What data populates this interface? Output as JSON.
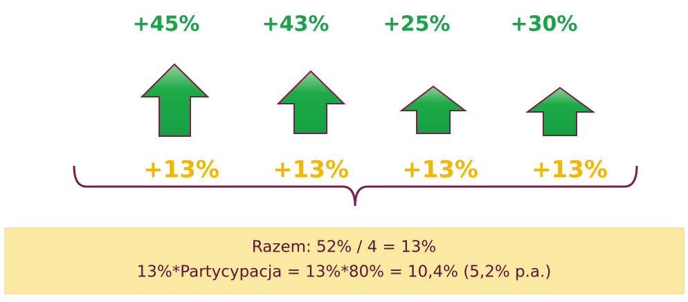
{
  "items": [
    {
      "top": "+45%",
      "bottom": "+13%"
    },
    {
      "top": "+43%",
      "bottom": "+13%"
    },
    {
      "top": "+25%",
      "bottom": "+13%"
    },
    {
      "top": "+30%",
      "bottom": "+13%"
    }
  ],
  "summary": {
    "line1": "Razem: 52% / 4 = 13%",
    "line2": "13%*Partycypacja = 13%*80% = 10,4% (5,2% p.a.)"
  }
}
